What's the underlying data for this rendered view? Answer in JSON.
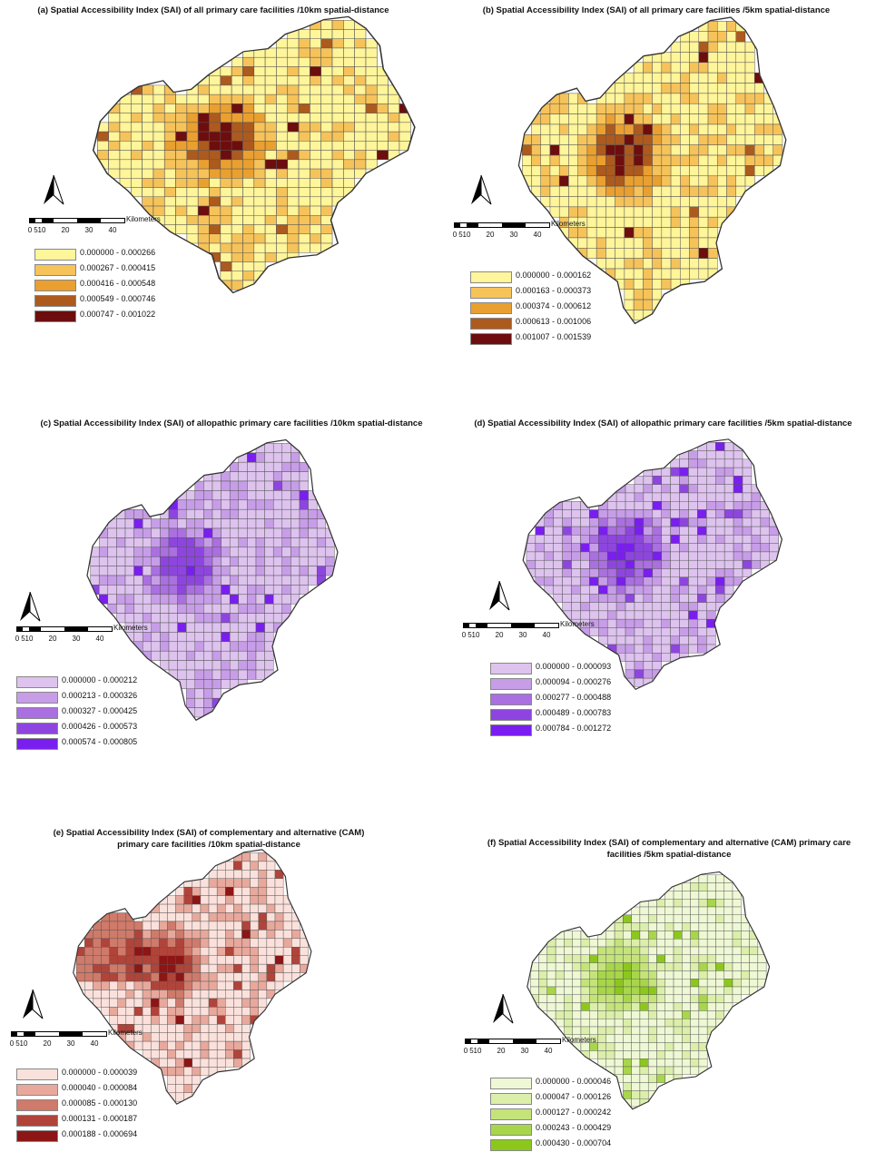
{
  "panels": [
    {
      "title": "(a) Spatial Accessibility Index (SAI) of all primary care facilities /10km spatial-distance",
      "scale_ticks": [
        "0",
        "5",
        "10",
        "20",
        "30",
        "40"
      ],
      "scale_unit": "Kilometers",
      "legend": [
        {
          "label": "0.000000 - 0.000266",
          "color": "#fff59a"
        },
        {
          "label": "0.000267 - 0.000415",
          "color": "#f6c35a"
        },
        {
          "label": "0.000416 - 0.000548",
          "color": "#e9a030"
        },
        {
          "label": "0.000549 - 0.000746",
          "color": "#ad5a1e"
        },
        {
          "label": "0.000747 - 0.001022",
          "color": "#6e0d0d"
        }
      ]
    },
    {
      "title": "(b) Spatial Accessibility Index (SAI) of all primary care facilities /5km spatial-distance",
      "scale_ticks": [
        "0",
        "5",
        "10",
        "20",
        "30",
        "40"
      ],
      "scale_unit": "Kilometers",
      "legend": [
        {
          "label": "0.000000 - 0.000162",
          "color": "#fff59a"
        },
        {
          "label": "0.000163 - 0.000373",
          "color": "#f6c35a"
        },
        {
          "label": "0.000374 - 0.000612",
          "color": "#e9a030"
        },
        {
          "label": "0.000613 - 0.001006",
          "color": "#ad5a1e"
        },
        {
          "label": "0.001007 - 0.001539",
          "color": "#6e0d0d"
        }
      ]
    },
    {
      "title": "(c) Spatial Accessibility Index (SAI) of allopathic primary care facilities /10km spatial-distance",
      "scale_ticks": [
        "0",
        "5",
        "10",
        "20",
        "30",
        "40"
      ],
      "scale_unit": "Kilometers",
      "legend": [
        {
          "label": "0.000000 - 0.000212",
          "color": "#ddc3ee"
        },
        {
          "label": "0.000213 - 0.000326",
          "color": "#c79de8"
        },
        {
          "label": "0.000327 - 0.000425",
          "color": "#aa6fe0"
        },
        {
          "label": "0.000426 - 0.000573",
          "color": "#8e45e0"
        },
        {
          "label": "0.000574 - 0.000805",
          "color": "#7a1ef0"
        }
      ]
    },
    {
      "title": "(d) Spatial Accessibility Index (SAI) of allopathic primary care facilities /5km spatial-distance",
      "scale_ticks": [
        "0",
        "5",
        "10",
        "20",
        "30",
        "40"
      ],
      "scale_unit": "Kilometers",
      "legend": [
        {
          "label": "0.000000 - 0.000093",
          "color": "#ddc3ee"
        },
        {
          "label": "0.000094 - 0.000276",
          "color": "#c79de8"
        },
        {
          "label": "0.000277 - 0.000488",
          "color": "#aa6fe0"
        },
        {
          "label": "0.000489 - 0.000783",
          "color": "#8e45e0"
        },
        {
          "label": "0.000784 - 0.001272",
          "color": "#7a1ef0"
        }
      ]
    },
    {
      "title": "(e) Spatial Accessibility Index (SAI) of complementary and alternative (CAM) primary care facilities /10km spatial-distance",
      "scale_ticks": [
        "0",
        "5",
        "10",
        "20",
        "30",
        "40"
      ],
      "scale_unit": "Kilometers",
      "legend": [
        {
          "label": "0.000000 - 0.000039",
          "color": "#fbe1dc"
        },
        {
          "label": "0.000040 - 0.000084",
          "color": "#e8a89c"
        },
        {
          "label": "0.000085 - 0.000130",
          "color": "#cf7a6a"
        },
        {
          "label": "0.000131 - 0.000187",
          "color": "#b0443a"
        },
        {
          "label": "0.000188 - 0.000694",
          "color": "#8c1515"
        }
      ]
    },
    {
      "title": "(f) Spatial Accessibility Index (SAI) of complementary and alternative (CAM) primary care facilities /5km spatial-distance",
      "scale_ticks": [
        "0",
        "5",
        "10",
        "20",
        "30",
        "40"
      ],
      "scale_unit": "Kilometers",
      "legend": [
        {
          "label": "0.000000 - 0.000046",
          "color": "#eef8d4"
        },
        {
          "label": "0.000047 - 0.000126",
          "color": "#dcefaa"
        },
        {
          "label": "0.000127 - 0.000242",
          "color": "#c4e47a"
        },
        {
          "label": "0.000243 - 0.000429",
          "color": "#a8d64a"
        },
        {
          "label": "0.000430 - 0.000704",
          "color": "#8cc81c"
        }
      ]
    }
  ]
}
